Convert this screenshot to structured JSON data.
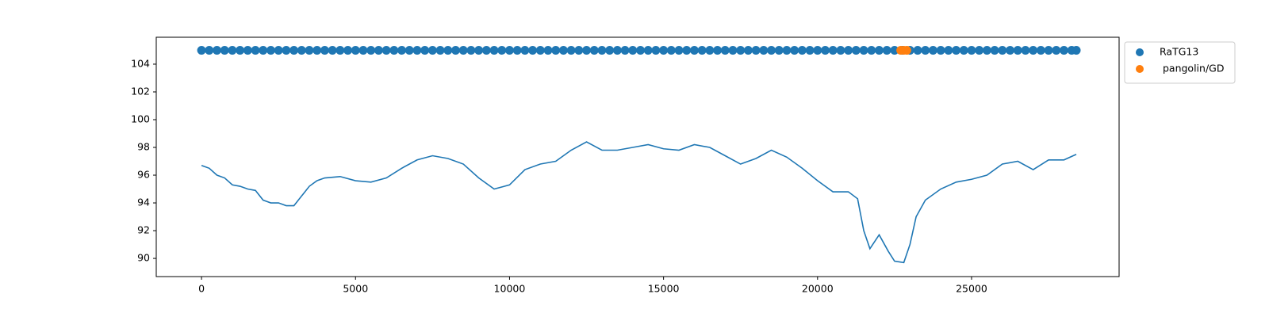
{
  "chart_data": {
    "type": "line",
    "xlim": [
      -1470,
      29790
    ],
    "ylim": [
      88.69,
      105.94
    ],
    "xticks": [
      0,
      5000,
      10000,
      15000,
      20000,
      25000
    ],
    "yticks": [
      90,
      92,
      94,
      96,
      98,
      100,
      102,
      104
    ],
    "legend": "outside-upper-right",
    "series": [
      {
        "type": "line",
        "color": "#1f77b4",
        "x": [
          0,
          250,
          500,
          750,
          1000,
          1250,
          1500,
          1750,
          2000,
          2250,
          2500,
          2750,
          3000,
          3250,
          3500,
          3750,
          4000,
          4500,
          5000,
          5500,
          6000,
          6500,
          7000,
          7500,
          8000,
          8500,
          9000,
          9500,
          10000,
          10500,
          11000,
          11500,
          12000,
          12500,
          13000,
          13500,
          14000,
          14500,
          15000,
          15500,
          16000,
          16500,
          17000,
          17500,
          18000,
          18500,
          19000,
          19500,
          20000,
          20500,
          21000,
          21300,
          21500,
          21700,
          22000,
          22300,
          22500,
          22800,
          23000,
          23200,
          23500,
          24000,
          24500,
          25000,
          25500,
          26000,
          26500,
          27000,
          27500,
          28000,
          28400
        ],
        "values": [
          96.7,
          96.5,
          96.0,
          95.8,
          95.3,
          95.2,
          95.0,
          94.9,
          94.2,
          94.0,
          94.0,
          93.8,
          93.8,
          94.5,
          95.2,
          95.6,
          95.8,
          95.9,
          95.6,
          95.5,
          95.8,
          96.5,
          97.1,
          97.4,
          97.2,
          96.8,
          95.8,
          95.0,
          95.3,
          96.4,
          96.8,
          97.0,
          97.8,
          98.4,
          97.8,
          97.8,
          98.0,
          98.2,
          97.9,
          97.8,
          98.2,
          98.0,
          97.4,
          96.8,
          97.2,
          97.8,
          97.3,
          96.5,
          95.6,
          94.8,
          94.8,
          94.3,
          92.0,
          90.7,
          91.7,
          90.5,
          89.8,
          89.7,
          91.0,
          93.0,
          94.2,
          95.0,
          95.5,
          95.7,
          96.0,
          96.8,
          97.0,
          96.4,
          97.1,
          97.1,
          97.5
        ]
      },
      {
        "type": "scatter",
        "name": "RaTG13",
        "color": "#1f77b4",
        "x": [
          0,
          250,
          500,
          750,
          1000,
          1250,
          1500,
          1750,
          2000,
          2250,
          2500,
          2750,
          3000,
          3250,
          3500,
          3750,
          4000,
          4250,
          4500,
          4750,
          5000,
          5250,
          5500,
          5750,
          6000,
          6250,
          6500,
          6750,
          7000,
          7250,
          7500,
          7750,
          8000,
          8250,
          8500,
          8750,
          9000,
          9250,
          9500,
          9750,
          10000,
          10250,
          10500,
          10750,
          11000,
          11250,
          11500,
          11750,
          12000,
          12250,
          12500,
          12750,
          13000,
          13250,
          13500,
          13750,
          14000,
          14250,
          14500,
          14750,
          15000,
          15250,
          15500,
          15750,
          16000,
          16250,
          16500,
          16750,
          17000,
          17250,
          17500,
          17750,
          18000,
          18250,
          18500,
          18750,
          19000,
          19250,
          19500,
          19750,
          20000,
          20250,
          20500,
          20750,
          21000,
          21250,
          21500,
          21750,
          22000,
          22250,
          22500,
          22750,
          23000,
          23250,
          23500,
          23750,
          24000,
          24250,
          24500,
          24750,
          25000,
          25250,
          25500,
          25750,
          26000,
          26250,
          26500,
          26750,
          27000,
          27250,
          27500,
          27750,
          28000,
          28250,
          28400
        ],
        "values": [
          105,
          105,
          105,
          105,
          105,
          105,
          105,
          105,
          105,
          105,
          105,
          105,
          105,
          105,
          105,
          105,
          105,
          105,
          105,
          105,
          105,
          105,
          105,
          105,
          105,
          105,
          105,
          105,
          105,
          105,
          105,
          105,
          105,
          105,
          105,
          105,
          105,
          105,
          105,
          105,
          105,
          105,
          105,
          105,
          105,
          105,
          105,
          105,
          105,
          105,
          105,
          105,
          105,
          105,
          105,
          105,
          105,
          105,
          105,
          105,
          105,
          105,
          105,
          105,
          105,
          105,
          105,
          105,
          105,
          105,
          105,
          105,
          105,
          105,
          105,
          105,
          105,
          105,
          105,
          105,
          105,
          105,
          105,
          105,
          105,
          105,
          105,
          105,
          105,
          105,
          105,
          105,
          105,
          105,
          105,
          105,
          105,
          105,
          105,
          105,
          105,
          105,
          105,
          105,
          105,
          105,
          105,
          105,
          105,
          105,
          105,
          105,
          105,
          105,
          105
        ]
      },
      {
        "type": "scatter",
        "name": " pangolin/GD",
        "color": "#ff7f0e",
        "x": [
          22700,
          22800,
          22900
        ],
        "values": [
          105,
          105,
          105
        ]
      }
    ]
  }
}
